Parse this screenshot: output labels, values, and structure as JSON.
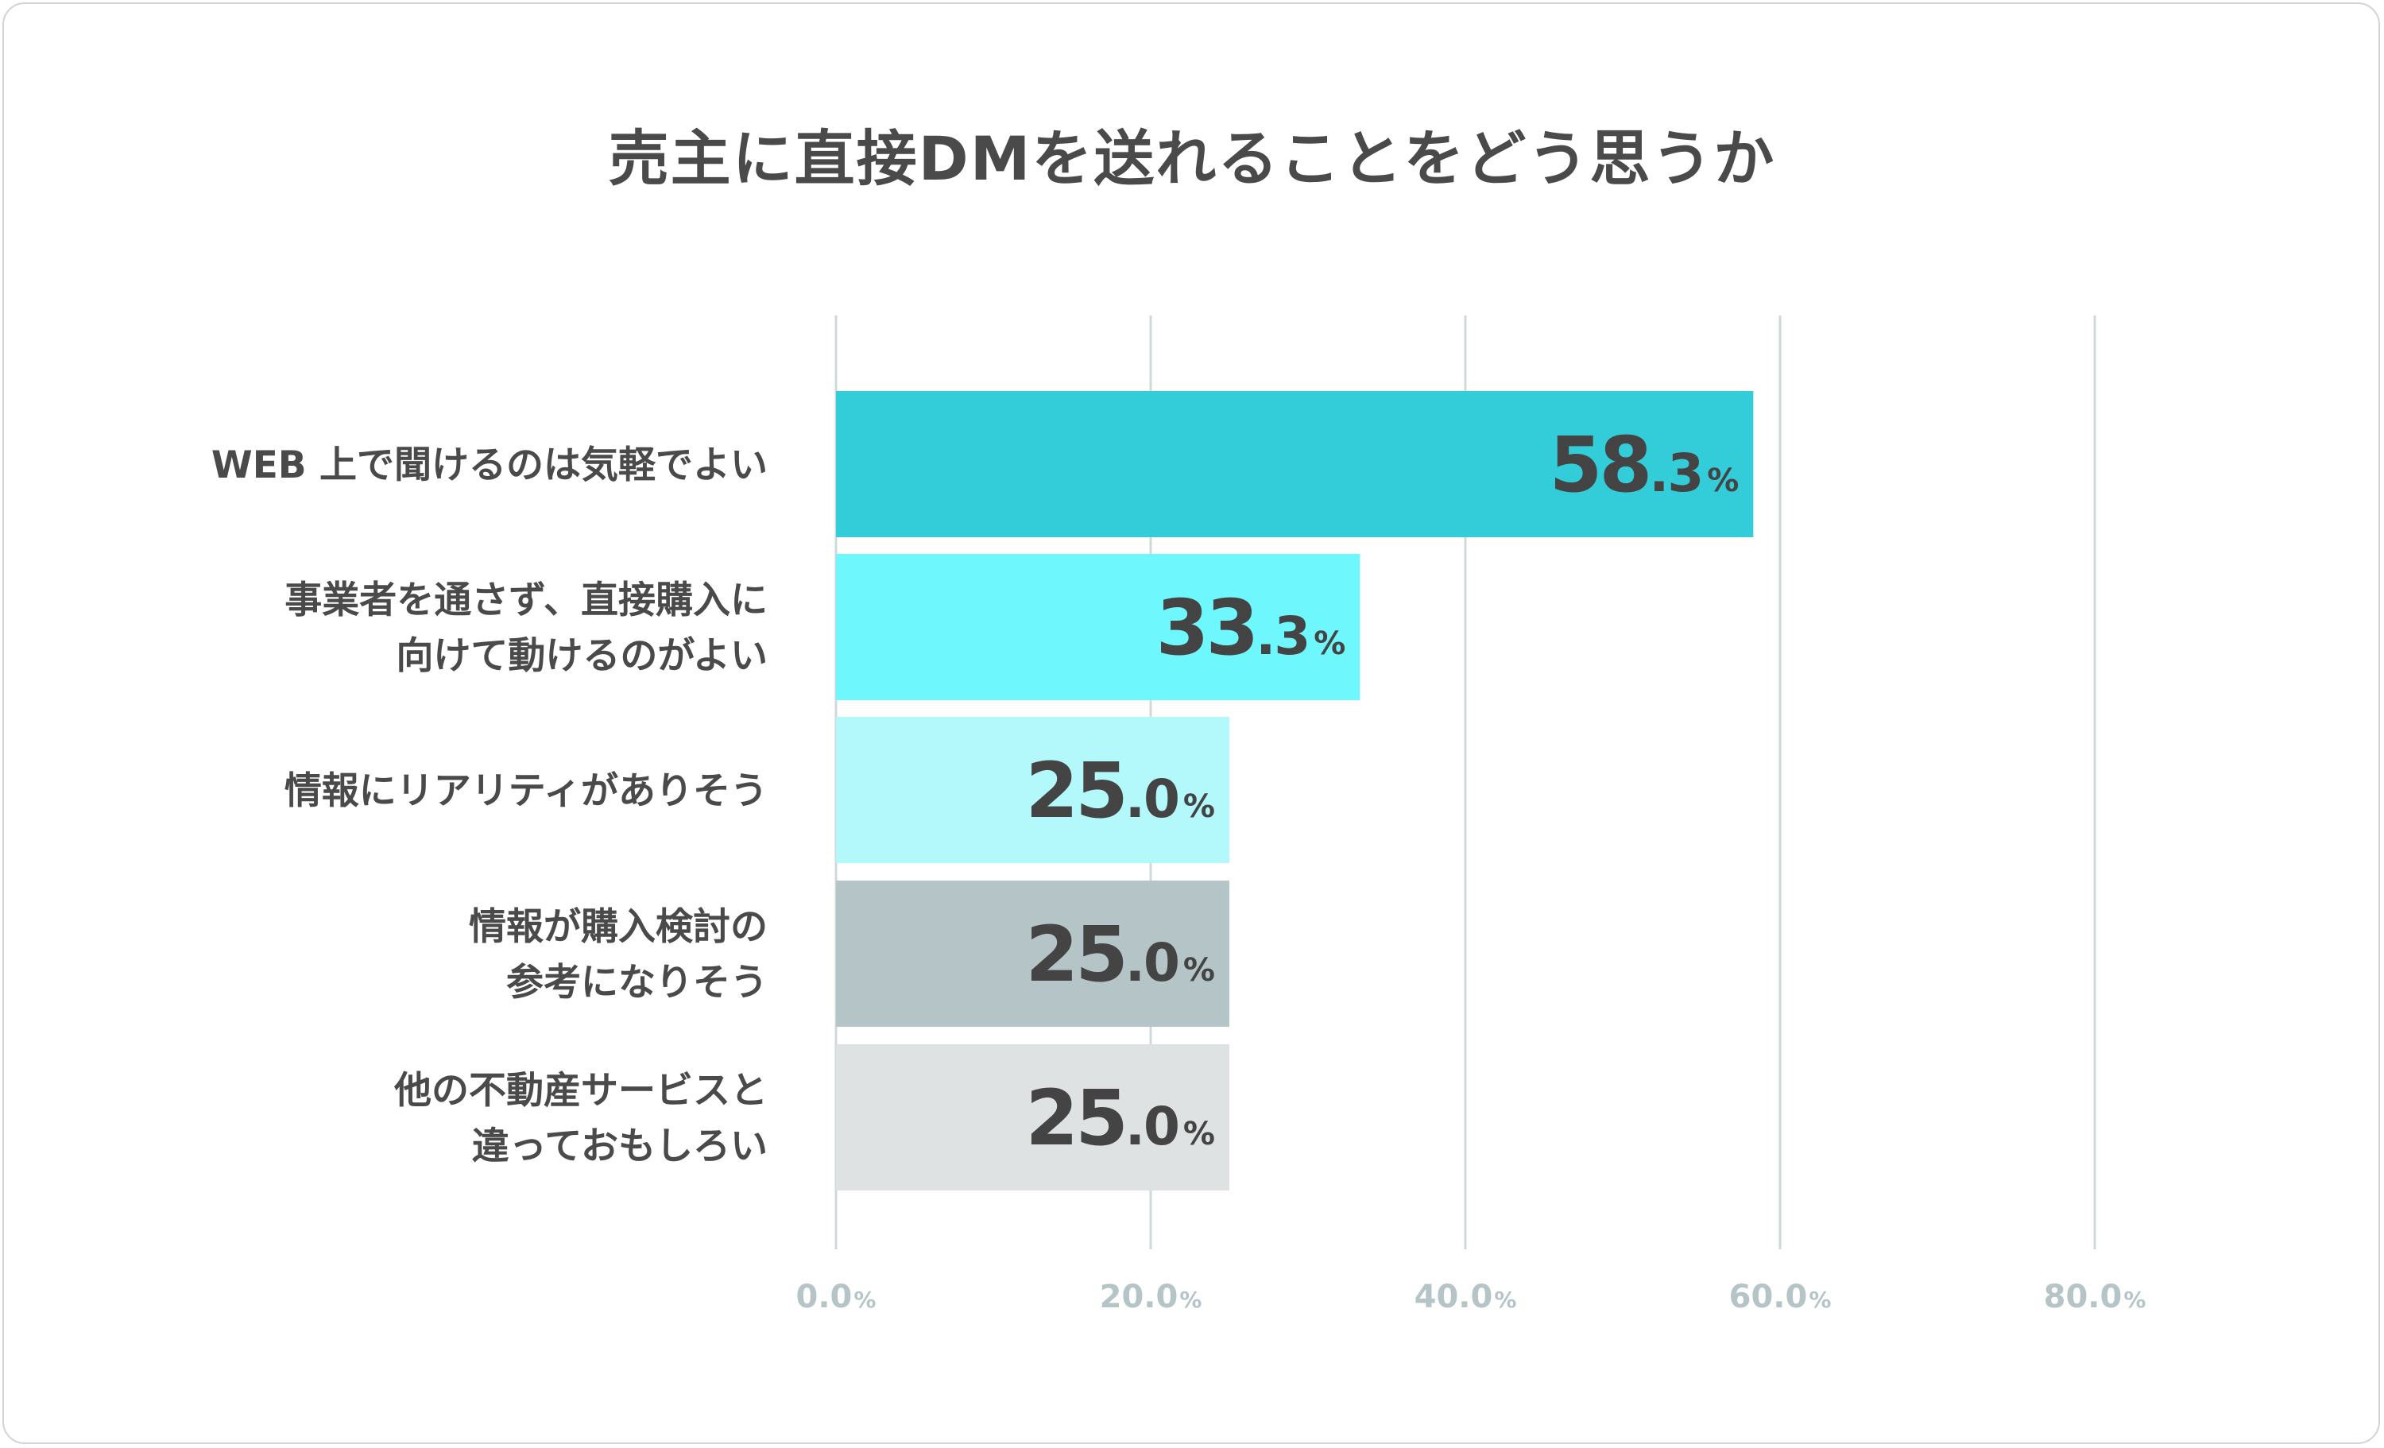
{
  "chart_data": {
    "type": "bar",
    "orientation": "horizontal",
    "title": "売主に直接DMを送れることをどう思うか",
    "xlabel": "",
    "ylabel": "",
    "xlim": [
      0,
      80
    ],
    "x_ticks": [
      "0.0",
      "20.0",
      "40.0",
      "60.0",
      "80.0"
    ],
    "tick_unit": "%",
    "grid": true,
    "categories": [
      [
        "WEB 上で聞けるのは気軽でよい"
      ],
      [
        "事業者を通さず、直接購入に",
        "向けて動けるのがよい"
      ],
      [
        "情報にリアリティがありそう"
      ],
      [
        "情報が購入検討の",
        "参考になりそう"
      ],
      [
        "他の不動産サービスと",
        "違っておもしろい"
      ]
    ],
    "values": [
      58.3,
      33.3,
      25.0,
      25.0,
      25.0
    ],
    "value_labels": [
      {
        "int": "58",
        "dec": ".3",
        "unit": "%"
      },
      {
        "int": "33",
        "dec": ".3",
        "unit": "%"
      },
      {
        "int": "25",
        "dec": ".0",
        "unit": "%"
      },
      {
        "int": "25",
        "dec": ".0",
        "unit": "%"
      },
      {
        "int": "25",
        "dec": ".0",
        "unit": "%"
      }
    ],
    "colors": [
      "#33cdd9",
      "#6ef7fd",
      "#b3f8fb",
      "#b5c4c7",
      "#dee2e3"
    ],
    "gridline_color": "#cfd8da"
  }
}
